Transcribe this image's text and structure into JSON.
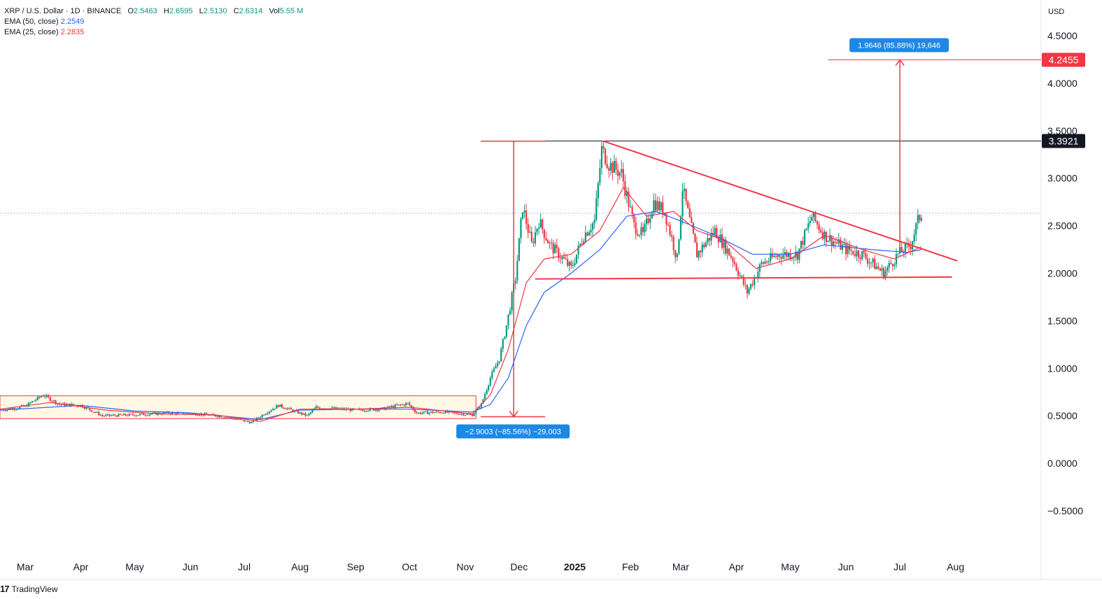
{
  "header": {
    "symbol_line": "XRP / U.S. Dollar · 1D · BINANCE",
    "open_label": "O",
    "open": "2.5463",
    "high_label": "H",
    "high": "2.6595",
    "low_label": "L",
    "low": "2.5130",
    "close_label": "C",
    "close": "2.6314",
    "vol_label": "Vol",
    "vol": "5.55 M",
    "ema50_label": "EMA (50, close)",
    "ema50_value": "2.2549",
    "ema25_label": "EMA (25, close)",
    "ema25_value": "2.2835"
  },
  "currency": "USD",
  "brand": {
    "logo": "17",
    "name": "TradingView"
  },
  "colors": {
    "up": "#089981",
    "down": "#f23645",
    "ema50": "#2962ff",
    "ema25": "#f23645",
    "pattern": "#f23645",
    "measure_down": "#1e88e5",
    "measure_up": "#1e88e5",
    "target": "#f23645"
  },
  "chart_data": {
    "type": "candlestick",
    "title": "",
    "xlabel": "",
    "ylabel": "",
    "ylim": [
      -0.75,
      4.65
    ],
    "y_ticks": [
      "4.5000",
      "4.0000",
      "3.5000",
      "3.0000",
      "2.5000",
      "2.0000",
      "1.5000",
      "1.0000",
      "0.5000",
      "0.0000",
      "−0.5000"
    ],
    "y_tick_values": [
      4.5,
      4.0,
      3.5,
      3.0,
      2.5,
      2.0,
      1.5,
      1.0,
      0.5,
      0.0,
      -0.5
    ],
    "x_ticks": [
      {
        "label": "Mar",
        "date": "2024-03-01"
      },
      {
        "label": "Apr",
        "date": "2024-04-01"
      },
      {
        "label": "May",
        "date": "2024-05-01"
      },
      {
        "label": "Jun",
        "date": "2024-06-01"
      },
      {
        "label": "Jul",
        "date": "2024-07-01"
      },
      {
        "label": "Aug",
        "date": "2024-08-01"
      },
      {
        "label": "Sep",
        "date": "2024-09-01"
      },
      {
        "label": "Oct",
        "date": "2024-10-01"
      },
      {
        "label": "Nov",
        "date": "2024-11-01"
      },
      {
        "label": "Dec",
        "date": "2024-12-01"
      },
      {
        "label": "2025",
        "date": "2025-01-01",
        "bold": true
      },
      {
        "label": "Feb",
        "date": "2025-02-01"
      },
      {
        "label": "Mar",
        "date": "2025-03-01"
      },
      {
        "label": "Apr",
        "date": "2025-04-01"
      },
      {
        "label": "May",
        "date": "2025-05-01"
      },
      {
        "label": "Jun",
        "date": "2025-06-01"
      },
      {
        "label": "Jul",
        "date": "2025-07-01"
      },
      {
        "label": "Aug",
        "date": "2025-08-01"
      }
    ],
    "x_range": [
      "2024-02-16",
      "2025-08-28"
    ],
    "price_path": [
      [
        "2024-02-16",
        0.56
      ],
      [
        "2024-03-01",
        0.6
      ],
      [
        "2024-03-11",
        0.72
      ],
      [
        "2024-03-20",
        0.62
      ],
      [
        "2024-04-01",
        0.61
      ],
      [
        "2024-04-13",
        0.5
      ],
      [
        "2024-05-01",
        0.51
      ],
      [
        "2024-05-20",
        0.53
      ],
      [
        "2024-06-05",
        0.52
      ],
      [
        "2024-06-20",
        0.49
      ],
      [
        "2024-07-05",
        0.43
      ],
      [
        "2024-07-12",
        0.52
      ],
      [
        "2024-07-20",
        0.61
      ],
      [
        "2024-08-05",
        0.5
      ],
      [
        "2024-08-10",
        0.59
      ],
      [
        "2024-09-01",
        0.56
      ],
      [
        "2024-09-15",
        0.57
      ],
      [
        "2024-09-30",
        0.63
      ],
      [
        "2024-10-05",
        0.53
      ],
      [
        "2024-10-20",
        0.54
      ],
      [
        "2024-11-05",
        0.51
      ],
      [
        "2024-11-10",
        0.62
      ],
      [
        "2024-11-15",
        0.9
      ],
      [
        "2024-11-20",
        1.1
      ],
      [
        "2024-11-24",
        1.45
      ],
      [
        "2024-11-29",
        1.95
      ],
      [
        "2024-12-03",
        2.7
      ],
      [
        "2024-12-08",
        2.3
      ],
      [
        "2024-12-12",
        2.55
      ],
      [
        "2024-12-18",
        2.3
      ],
      [
        "2024-12-23",
        2.2
      ],
      [
        "2024-12-30",
        2.05
      ],
      [
        "2025-01-06",
        2.4
      ],
      [
        "2025-01-12",
        2.55
      ],
      [
        "2025-01-16",
        3.3
      ],
      [
        "2025-01-20",
        3.15
      ],
      [
        "2025-01-27",
        3.05
      ],
      [
        "2025-02-03",
        2.5
      ],
      [
        "2025-02-08",
        2.4
      ],
      [
        "2025-02-14",
        2.75
      ],
      [
        "2025-02-20",
        2.65
      ],
      [
        "2025-02-27",
        2.15
      ],
      [
        "2025-03-02",
        2.9
      ],
      [
        "2025-03-10",
        2.2
      ],
      [
        "2025-03-20",
        2.45
      ],
      [
        "2025-03-30",
        2.15
      ],
      [
        "2025-04-07",
        1.8
      ],
      [
        "2025-04-15",
        2.1
      ],
      [
        "2025-04-25",
        2.2
      ],
      [
        "2025-05-05",
        2.2
      ],
      [
        "2025-05-13",
        2.6
      ],
      [
        "2025-05-20",
        2.4
      ],
      [
        "2025-06-01",
        2.25
      ],
      [
        "2025-06-10",
        2.2
      ],
      [
        "2025-06-22",
        2.0
      ],
      [
        "2025-06-30",
        2.2
      ],
      [
        "2025-07-07",
        2.3
      ],
      [
        "2025-07-11",
        2.55
      ],
      [
        "2025-07-13",
        2.63
      ]
    ],
    "ema50_path": [
      [
        "2024-02-16",
        0.56
      ],
      [
        "2024-04-01",
        0.61
      ],
      [
        "2024-05-01",
        0.55
      ],
      [
        "2024-06-01",
        0.53
      ],
      [
        "2024-07-10",
        0.46
      ],
      [
        "2024-08-01",
        0.56
      ],
      [
        "2024-09-01",
        0.57
      ],
      [
        "2024-10-01",
        0.57
      ],
      [
        "2024-11-05",
        0.54
      ],
      [
        "2024-11-15",
        0.62
      ],
      [
        "2024-11-25",
        0.9
      ],
      [
        "2024-12-05",
        1.45
      ],
      [
        "2024-12-15",
        1.8
      ],
      [
        "2024-12-30",
        2.0
      ],
      [
        "2025-01-15",
        2.25
      ],
      [
        "2025-01-30",
        2.6
      ],
      [
        "2025-02-15",
        2.65
      ],
      [
        "2025-03-01",
        2.55
      ],
      [
        "2025-03-20",
        2.4
      ],
      [
        "2025-04-10",
        2.2
      ],
      [
        "2025-05-01",
        2.2
      ],
      [
        "2025-05-20",
        2.3
      ],
      [
        "2025-06-15",
        2.25
      ],
      [
        "2025-07-05",
        2.22
      ],
      [
        "2025-07-13",
        2.25
      ]
    ],
    "ema25_path": [
      [
        "2024-02-16",
        0.57
      ],
      [
        "2024-03-15",
        0.64
      ],
      [
        "2024-04-15",
        0.56
      ],
      [
        "2024-05-15",
        0.52
      ],
      [
        "2024-06-15",
        0.51
      ],
      [
        "2024-07-10",
        0.44
      ],
      [
        "2024-08-01",
        0.57
      ],
      [
        "2024-09-01",
        0.57
      ],
      [
        "2024-10-01",
        0.59
      ],
      [
        "2024-11-05",
        0.52
      ],
      [
        "2024-11-15",
        0.72
      ],
      [
        "2024-11-25",
        1.2
      ],
      [
        "2024-12-05",
        1.9
      ],
      [
        "2024-12-15",
        2.15
      ],
      [
        "2024-12-30",
        2.2
      ],
      [
        "2025-01-15",
        2.45
      ],
      [
        "2025-01-28",
        2.9
      ],
      [
        "2025-02-10",
        2.6
      ],
      [
        "2025-02-25",
        2.65
      ],
      [
        "2025-03-10",
        2.45
      ],
      [
        "2025-03-25",
        2.35
      ],
      [
        "2025-04-12",
        2.05
      ],
      [
        "2025-05-01",
        2.15
      ],
      [
        "2025-05-20",
        2.4
      ],
      [
        "2025-06-10",
        2.25
      ],
      [
        "2025-06-28",
        2.15
      ],
      [
        "2025-07-13",
        2.28
      ]
    ],
    "range_box": {
      "x1": "2024-02-16",
      "x2": "2024-11-07",
      "y1": 0.47,
      "y2": 0.71
    },
    "triangle": {
      "upper": [
        [
          "2025-01-17",
          3.39
        ],
        [
          "2025-08-02",
          2.13
        ]
      ],
      "lower": [
        [
          "2024-12-10",
          1.94
        ],
        [
          "2025-07-30",
          1.96
        ]
      ]
    },
    "pole_measure": {
      "date": "2024-11-28",
      "top": 3.39,
      "bottom": 0.49,
      "label": "−2.9003 (−85.56%) −29,003"
    },
    "target_measure": {
      "date": "2025-07-01",
      "from": 2.28,
      "to": 4.2455,
      "label": "1.9646 (85.88%) 19,646"
    },
    "resistance_level": {
      "value": 3.3921,
      "label": "3.3921"
    },
    "target_level": {
      "value": 4.2455,
      "label": "4.2455"
    },
    "last_price": 2.6314
  }
}
